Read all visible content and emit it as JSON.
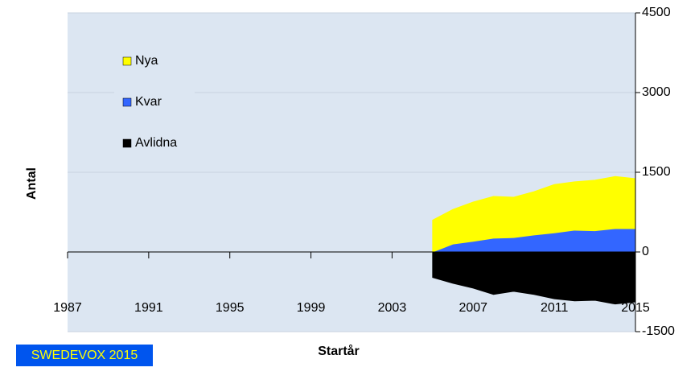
{
  "chart_data": {
    "type": "stacked-area",
    "x_title": "Startår",
    "y_title": "Antal",
    "watermark": "SWEDEVOX 2015",
    "x": [
      2005,
      2006,
      2007,
      2008,
      2009,
      2010,
      2011,
      2012,
      2013,
      2014,
      2015
    ],
    "series": [
      {
        "name": "Nya",
        "color": "#ffff00",
        "values": [
          600,
          650,
          740,
          785,
          760,
          815,
          910,
          910,
          950,
          980,
          940
        ]
      },
      {
        "name": "Kvar",
        "color": "#3366ff",
        "values": [
          0,
          150,
          200,
          260,
          270,
          320,
          360,
          410,
          400,
          440,
          440
        ]
      },
      {
        "name": "Avlidna",
        "color": "#000000",
        "values": [
          -480,
          -590,
          -680,
          -800,
          -740,
          -800,
          -880,
          -920,
          -910,
          -980,
          -940
        ]
      }
    ],
    "xlim": [
      1987,
      2015
    ],
    "xticks": [
      1987,
      1991,
      1995,
      1999,
      2003,
      2007,
      2011,
      2015
    ],
    "ylim": [
      -1500,
      4500
    ],
    "yticks": [
      -1500,
      0,
      1500,
      3000,
      4500
    ],
    "grid": true
  }
}
